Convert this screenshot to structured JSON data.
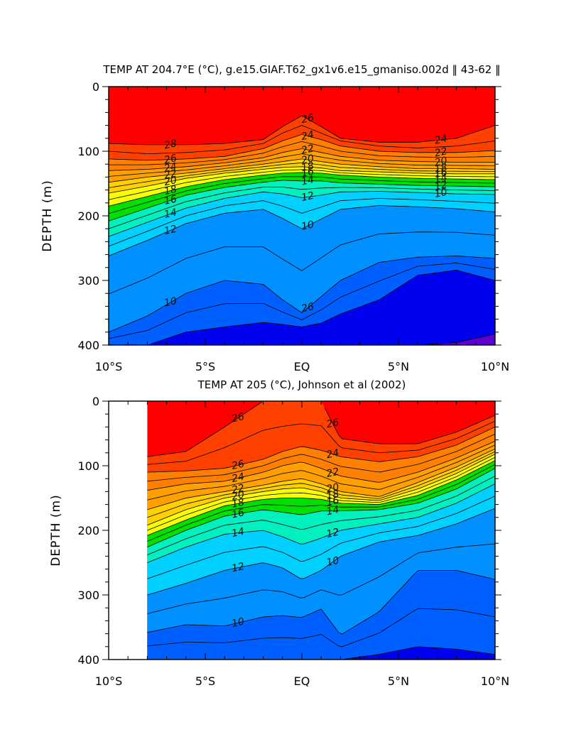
{
  "figure": {
    "panels": [
      {
        "title": "TEMP AT 204.7°E (°C), g.e15.GIAF.T62_gx1v6.e15_gmaniso.002d ‖ 43-62 ‖",
        "ylabel": "DEPTH (m)",
        "x_ticks": [
          "10°S",
          "5°S",
          "EQ",
          "5°N",
          "10°N"
        ],
        "y_ticks": [
          "0",
          "100",
          "200",
          "300",
          "400"
        ]
      },
      {
        "title": "TEMP AT 205 (°C), Johnson et al (2002)",
        "ylabel": "DEPTH (m)",
        "x_ticks": [
          "10°S",
          "5°S",
          "EQ",
          "5°N",
          "10°N"
        ],
        "y_ticks": [
          "0",
          "100",
          "200",
          "300",
          "400"
        ]
      }
    ]
  },
  "chart_data": [
    {
      "type": "heatmap",
      "title": "TEMP AT 204.7°E (°C), g.e15.GIAF.T62_gx1v6.e15_gmaniso.002d ‖ 43-62 ‖",
      "xlabel": "",
      "ylabel": "DEPTH (m)",
      "xlim": [
        -10,
        10
      ],
      "ylim": [
        400,
        0
      ],
      "x_tick_labels": [
        "10°S",
        "5°S",
        "EQ",
        "5°N",
        "10°N"
      ],
      "y_tick_labels": [
        "0",
        "100",
        "200",
        "300",
        "400"
      ],
      "contour_interval": 1,
      "contour_labels": [
        "28",
        "26",
        "24",
        "22",
        "20",
        "18",
        "16",
        "14",
        "12",
        "10",
        "26",
        "24",
        "22",
        "20",
        "18",
        "16",
        "14",
        "12",
        "10",
        "26",
        "24",
        "22",
        "20",
        "18",
        "16",
        "14",
        "12",
        "10"
      ],
      "colors": {
        "29": "#ff0000",
        "28": "#fe4000",
        "26": "#ff8000",
        "24": "#ffa000",
        "22": "#ffd000",
        "20": "#f8ff00",
        "18": "#00e000",
        "16": "#00f0c0",
        "14": "#00d0ff",
        "12": "#0090ff",
        "10": "#0060ff",
        "8": "#0000f0",
        "7": "#6000d0"
      },
      "isotherm_depths_m": {
        "lat": [
          -10,
          -8,
          -6,
          -4,
          -2,
          -1,
          0,
          1,
          2,
          4,
          6,
          8,
          10
        ],
        "levels": {
          "28": [
            88,
            90,
            90,
            88,
            82,
            62,
            45,
            62,
            80,
            86,
            86,
            80,
            60
          ],
          "27": [
            100,
            104,
            102,
            98,
            88,
            72,
            60,
            72,
            84,
            92,
            95,
            92,
            84
          ],
          "26": [
            112,
            114,
            112,
            108,
            96,
            84,
            74,
            82,
            92,
            100,
            102,
            102,
            99
          ],
          "24": [
            130,
            128,
            124,
            118,
            110,
            102,
            96,
            102,
            108,
            114,
            116,
            117,
            117
          ],
          "22": [
            148,
            140,
            134,
            127,
            120,
            116,
            112,
            116,
            120,
            124,
            127,
            127,
            128
          ],
          "20": [
            165,
            154,
            142,
            134,
            128,
            125,
            124,
            126,
            130,
            132,
            134,
            135,
            135
          ],
          "18": [
            185,
            170,
            155,
            144,
            137,
            134,
            133,
            134,
            137,
            140,
            142,
            143,
            144
          ],
          "16": [
            208,
            188,
            168,
            156,
            148,
            145,
            146,
            146,
            149,
            151,
            153,
            154,
            155
          ],
          "14": [
            232,
            210,
            188,
            173,
            163,
            166,
            172,
            168,
            163,
            162,
            164,
            166,
            167
          ],
          "12": [
            262,
            238,
            212,
            196,
            190,
            204,
            220,
            205,
            190,
            184,
            186,
            189,
            194
          ],
          "10": [
            380,
            355,
            320,
            300,
            306,
            330,
            350,
            325,
            300,
            272,
            264,
            262,
            266
          ],
          "8": [
            400,
            400,
            380,
            372,
            365,
            368,
            372,
            366,
            352,
            330,
            292,
            284,
            300
          ],
          "7": [
            400,
            400,
            400,
            400,
            400,
            400,
            400,
            400,
            400,
            400,
            400,
            396,
            383
          ]
        }
      }
    },
    {
      "type": "heatmap",
      "title": "TEMP AT 205 (°C), Johnson et al (2002)",
      "xlabel": "",
      "ylabel": "DEPTH (m)",
      "xlim": [
        -10,
        10
      ],
      "ylim": [
        400,
        0
      ],
      "data_xlim": [
        -8,
        10
      ],
      "x_tick_labels": [
        "10°S",
        "5°S",
        "EQ",
        "5°N",
        "10°N"
      ],
      "y_tick_labels": [
        "0",
        "100",
        "200",
        "300",
        "400"
      ],
      "contour_interval": 1,
      "contour_labels": [
        "26",
        "26",
        "24",
        "22",
        "20",
        "18",
        "16",
        "14",
        "12",
        "10",
        "26",
        "24",
        "22",
        "20",
        "18",
        "16",
        "14",
        "12",
        "10"
      ],
      "colors": {
        "29": "#ff0000",
        "28": "#fe4000",
        "26": "#ff8000",
        "24": "#ffa000",
        "22": "#ffd000",
        "20": "#f8ff00",
        "18": "#00e000",
        "16": "#00f0c0",
        "14": "#00d0ff",
        "12": "#0090ff",
        "10": "#0060ff",
        "8": "#0000f0"
      },
      "isotherm_depths_m": {
        "lat": [
          -8,
          -6,
          -4,
          -2,
          -1,
          0,
          1,
          2,
          4,
          6,
          8,
          10
        ],
        "levels": {
          "28": [
            86,
            78,
            40,
            0,
            0,
            0,
            0,
            58,
            66,
            66,
            48,
            22
          ],
          "26": [
            110,
            108,
            104,
            90,
            78,
            70,
            76,
            86,
            94,
            86,
            68,
            40
          ],
          "24": [
            138,
            128,
            124,
            110,
            100,
            94,
            104,
            116,
            126,
            110,
            88,
            62
          ],
          "22": [
            168,
            150,
            140,
            130,
            124,
            120,
            128,
            140,
            148,
            126,
            102,
            74
          ],
          "20": [
            192,
            168,
            150,
            140,
            136,
            134,
            140,
            150,
            154,
            136,
            112,
            82
          ],
          "18": [
            208,
            184,
            162,
            152,
            150,
            150,
            152,
            158,
            160,
            146,
            122,
            92
          ],
          "16": [
            226,
            200,
            178,
            168,
            172,
            176,
            170,
            170,
            168,
            158,
            136,
            104
          ],
          "14": [
            250,
            226,
            206,
            200,
            210,
            222,
            212,
            200,
            190,
            180,
            158,
            128
          ],
          "12": [
            300,
            282,
            262,
            250,
            258,
            276,
            262,
            240,
            218,
            208,
            190,
            166
          ],
          "10": [
            358,
            346,
            348,
            334,
            332,
            335,
            322,
            362,
            326,
            262,
            262,
            276
          ],
          "8": [
            400,
            400,
            400,
            400,
            400,
            400,
            400,
            400,
            392,
            380,
            384,
            392
          ]
        }
      }
    }
  ]
}
